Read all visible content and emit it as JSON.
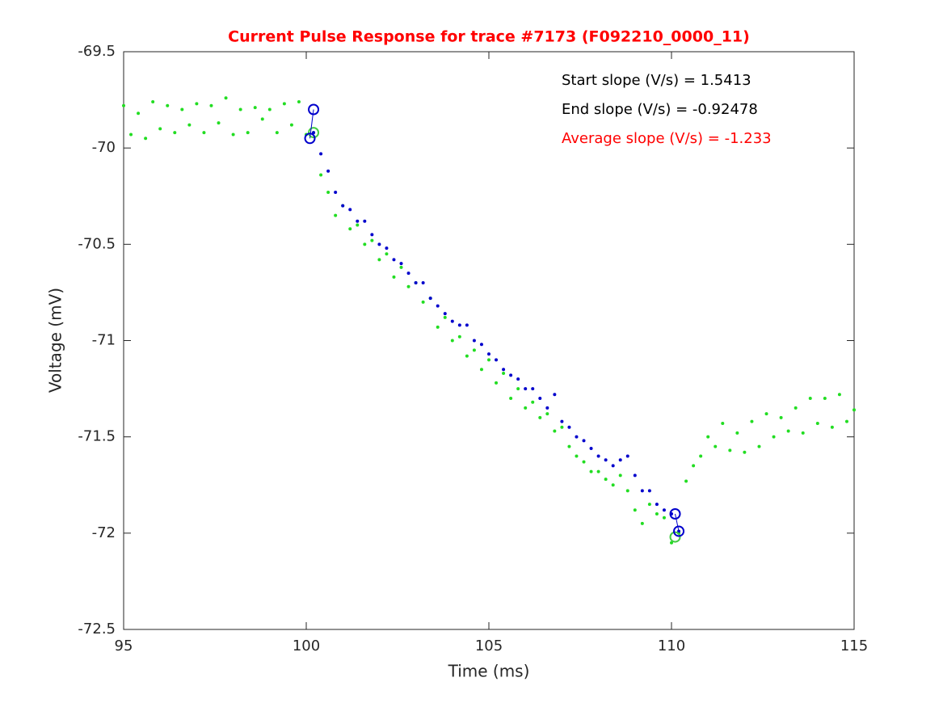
{
  "chart_data": {
    "type": "scatter",
    "title": "Current Pulse Response for trace #7173 (F092210_0000_11)",
    "title_color": "#ff0000",
    "xlabel": "Time (ms)",
    "ylabel": "Voltage (mV)",
    "xlim": [
      95,
      115
    ],
    "ylim": [
      -72.5,
      -69.5
    ],
    "xticks": [
      95,
      100,
      105,
      110,
      115
    ],
    "yticks": [
      -72.5,
      -72,
      -71.5,
      -71,
      -70.5,
      -70,
      -69.5
    ],
    "annotations": [
      {
        "text": "Start slope (V/s) = 1.5413",
        "color": "#000000"
      },
      {
        "text": "End slope (V/s) = -0.92478",
        "color": "#000000"
      },
      {
        "text": "Average slope (V/s) = -1.233",
        "color": "#ff0000"
      }
    ],
    "series": [
      {
        "color": "#22dd22",
        "x": [
          95.0,
          95.2,
          95.4,
          95.6,
          95.8,
          96.0,
          96.2,
          96.4,
          96.6,
          96.8,
          97.0,
          97.2,
          97.4,
          97.6,
          97.8,
          98.0,
          98.2,
          98.4,
          98.6,
          98.8,
          99.0,
          99.2,
          99.4,
          99.6,
          99.8,
          100.0,
          100.2,
          100.4,
          100.6,
          100.8,
          101.0,
          101.2,
          101.4,
          101.6,
          101.8,
          102.0,
          102.2,
          102.4,
          102.6,
          102.8,
          103.0,
          103.2,
          103.4,
          103.6,
          103.8,
          104.0,
          104.2,
          104.4,
          104.6,
          104.8,
          105.0,
          105.2,
          105.4,
          105.6,
          105.8,
          106.0,
          106.2,
          106.4,
          106.6,
          106.8,
          107.0,
          107.2,
          107.4,
          107.6,
          107.8,
          108.0,
          108.2,
          108.4,
          108.6,
          108.8,
          109.0,
          109.2,
          109.4,
          109.6,
          109.8,
          110.0,
          110.2,
          110.4,
          110.6,
          110.8,
          111.0,
          111.2,
          111.4,
          111.6,
          111.8,
          112.0,
          112.2,
          112.4,
          112.6,
          112.8,
          113.0,
          113.2,
          113.4,
          113.6,
          113.8,
          114.0,
          114.2,
          114.4,
          114.6,
          114.8,
          115.0
        ],
        "values": [
          -69.78,
          -69.93,
          -69.82,
          -69.95,
          -69.76,
          -69.9,
          -69.78,
          -69.92,
          -69.8,
          -69.88,
          -69.77,
          -69.92,
          -69.78,
          -69.87,
          -69.74,
          -69.93,
          -69.8,
          -69.92,
          -69.79,
          -69.85,
          -69.8,
          -69.92,
          -69.77,
          -69.88,
          -69.76,
          -69.93,
          -69.92,
          -70.14,
          -70.23,
          -70.35,
          -70.3,
          -70.42,
          -70.4,
          -70.5,
          -70.48,
          -70.58,
          -70.55,
          -70.67,
          -70.62,
          -70.72,
          -70.7,
          -70.8,
          -70.78,
          -70.93,
          -70.88,
          -71.0,
          -70.98,
          -71.08,
          -71.05,
          -71.15,
          -71.1,
          -71.22,
          -71.17,
          -71.3,
          -71.25,
          -71.35,
          -71.32,
          -71.4,
          -71.38,
          -71.47,
          -71.45,
          -71.55,
          -71.6,
          -71.63,
          -71.68,
          -71.68,
          -71.72,
          -71.75,
          -71.7,
          -71.78,
          -71.88,
          -71.95,
          -71.85,
          -71.9,
          -71.92,
          -72.05,
          -72.0,
          -71.73,
          -71.65,
          -71.6,
          -71.5,
          -71.55,
          -71.43,
          -71.57,
          -71.48,
          -71.58,
          -71.42,
          -71.55,
          -71.38,
          -71.5,
          -71.4,
          -71.47,
          -71.35,
          -71.48,
          -71.3,
          -71.43,
          -71.3,
          -71.45,
          -71.28,
          -71.42,
          -71.36
        ]
      },
      {
        "color": "#0000cc",
        "x": [
          100.2,
          100.4,
          100.6,
          100.8,
          101.0,
          101.2,
          101.4,
          101.6,
          101.8,
          102.0,
          102.2,
          102.4,
          102.6,
          102.8,
          103.0,
          103.2,
          103.4,
          103.6,
          103.8,
          104.0,
          104.2,
          104.4,
          104.6,
          104.8,
          105.0,
          105.2,
          105.4,
          105.6,
          105.8,
          106.0,
          106.2,
          106.4,
          106.6,
          106.8,
          107.0,
          107.2,
          107.4,
          107.6,
          107.8,
          108.0,
          108.2,
          108.4,
          108.6,
          108.8,
          109.0,
          109.2,
          109.4,
          109.6,
          109.8,
          110.0,
          110.2
        ],
        "values": [
          -69.92,
          -70.03,
          -70.12,
          -70.23,
          -70.3,
          -70.32,
          -70.38,
          -70.38,
          -70.45,
          -70.5,
          -70.52,
          -70.58,
          -70.6,
          -70.65,
          -70.7,
          -70.7,
          -70.78,
          -70.82,
          -70.86,
          -70.9,
          -70.92,
          -70.92,
          -71.0,
          -71.02,
          -71.07,
          -71.1,
          -71.15,
          -71.18,
          -71.2,
          -71.25,
          -71.25,
          -71.3,
          -71.35,
          -71.28,
          -71.42,
          -71.45,
          -71.5,
          -71.52,
          -71.56,
          -71.6,
          -71.62,
          -71.65,
          -71.62,
          -71.6,
          -71.7,
          -71.78,
          -71.78,
          -71.85,
          -71.88,
          -71.9,
          -71.99
        ]
      }
    ],
    "fits": [
      {
        "color": "#0000cc",
        "x": [
          100.1,
          100.2
        ],
        "values": [
          -69.95,
          -69.8
        ]
      },
      {
        "color": "#0000cc",
        "x": [
          110.1,
          110.2
        ],
        "values": [
          -71.9,
          -71.99
        ]
      }
    ],
    "markers": [
      {
        "color": "#44cc44",
        "x": [
          100.2,
          110.1
        ],
        "values": [
          -69.92,
          -72.02
        ]
      }
    ]
  }
}
